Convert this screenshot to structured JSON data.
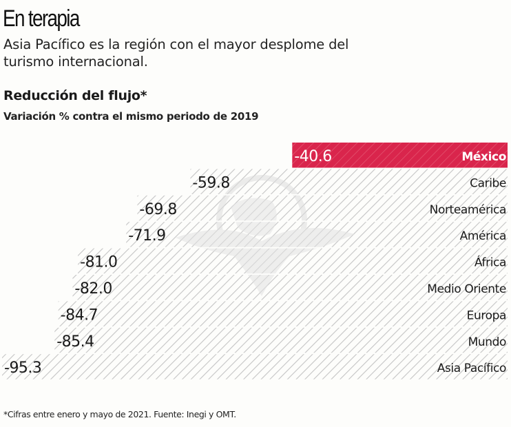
{
  "header": {
    "title": "En terapia",
    "subtitle": "Asia Pacífico es la región con el mayor desplome del turismo internacional."
  },
  "footnote": "*Cifras entre enero y mayo de 2021. Fuente: Inegi y OMT.",
  "colors": {
    "highlight": "#d9254c",
    "hatch": "#c9c9c9",
    "text": "#1a1a1a",
    "highlight_text": "#ffffff"
  },
  "chart_data": {
    "type": "bar",
    "orientation": "horizontal",
    "title": "Reducción del flujo*",
    "subtitle": "Variación % contra el mismo periodo de 2019",
    "xlabel": "",
    "ylabel": "",
    "xlim": [
      -95.3,
      0
    ],
    "grid": false,
    "legend": "none",
    "categories": [
      "México",
      "Caribe",
      "Norteamérica",
      "América",
      "África",
      "Medio Oriente",
      "Europa",
      "Mundo",
      "Asia Pacífico"
    ],
    "values": [
      -40.6,
      -59.8,
      -69.8,
      -71.9,
      -81.0,
      -82.0,
      -84.7,
      -85.4,
      -95.3
    ],
    "value_labels": [
      "-40.6",
      "-59.8",
      "-69.8",
      "-71.9",
      "-81.0",
      "-82.0",
      "-84.7",
      "-85.4",
      "-95.3"
    ],
    "highlighted": [
      "México"
    ]
  }
}
